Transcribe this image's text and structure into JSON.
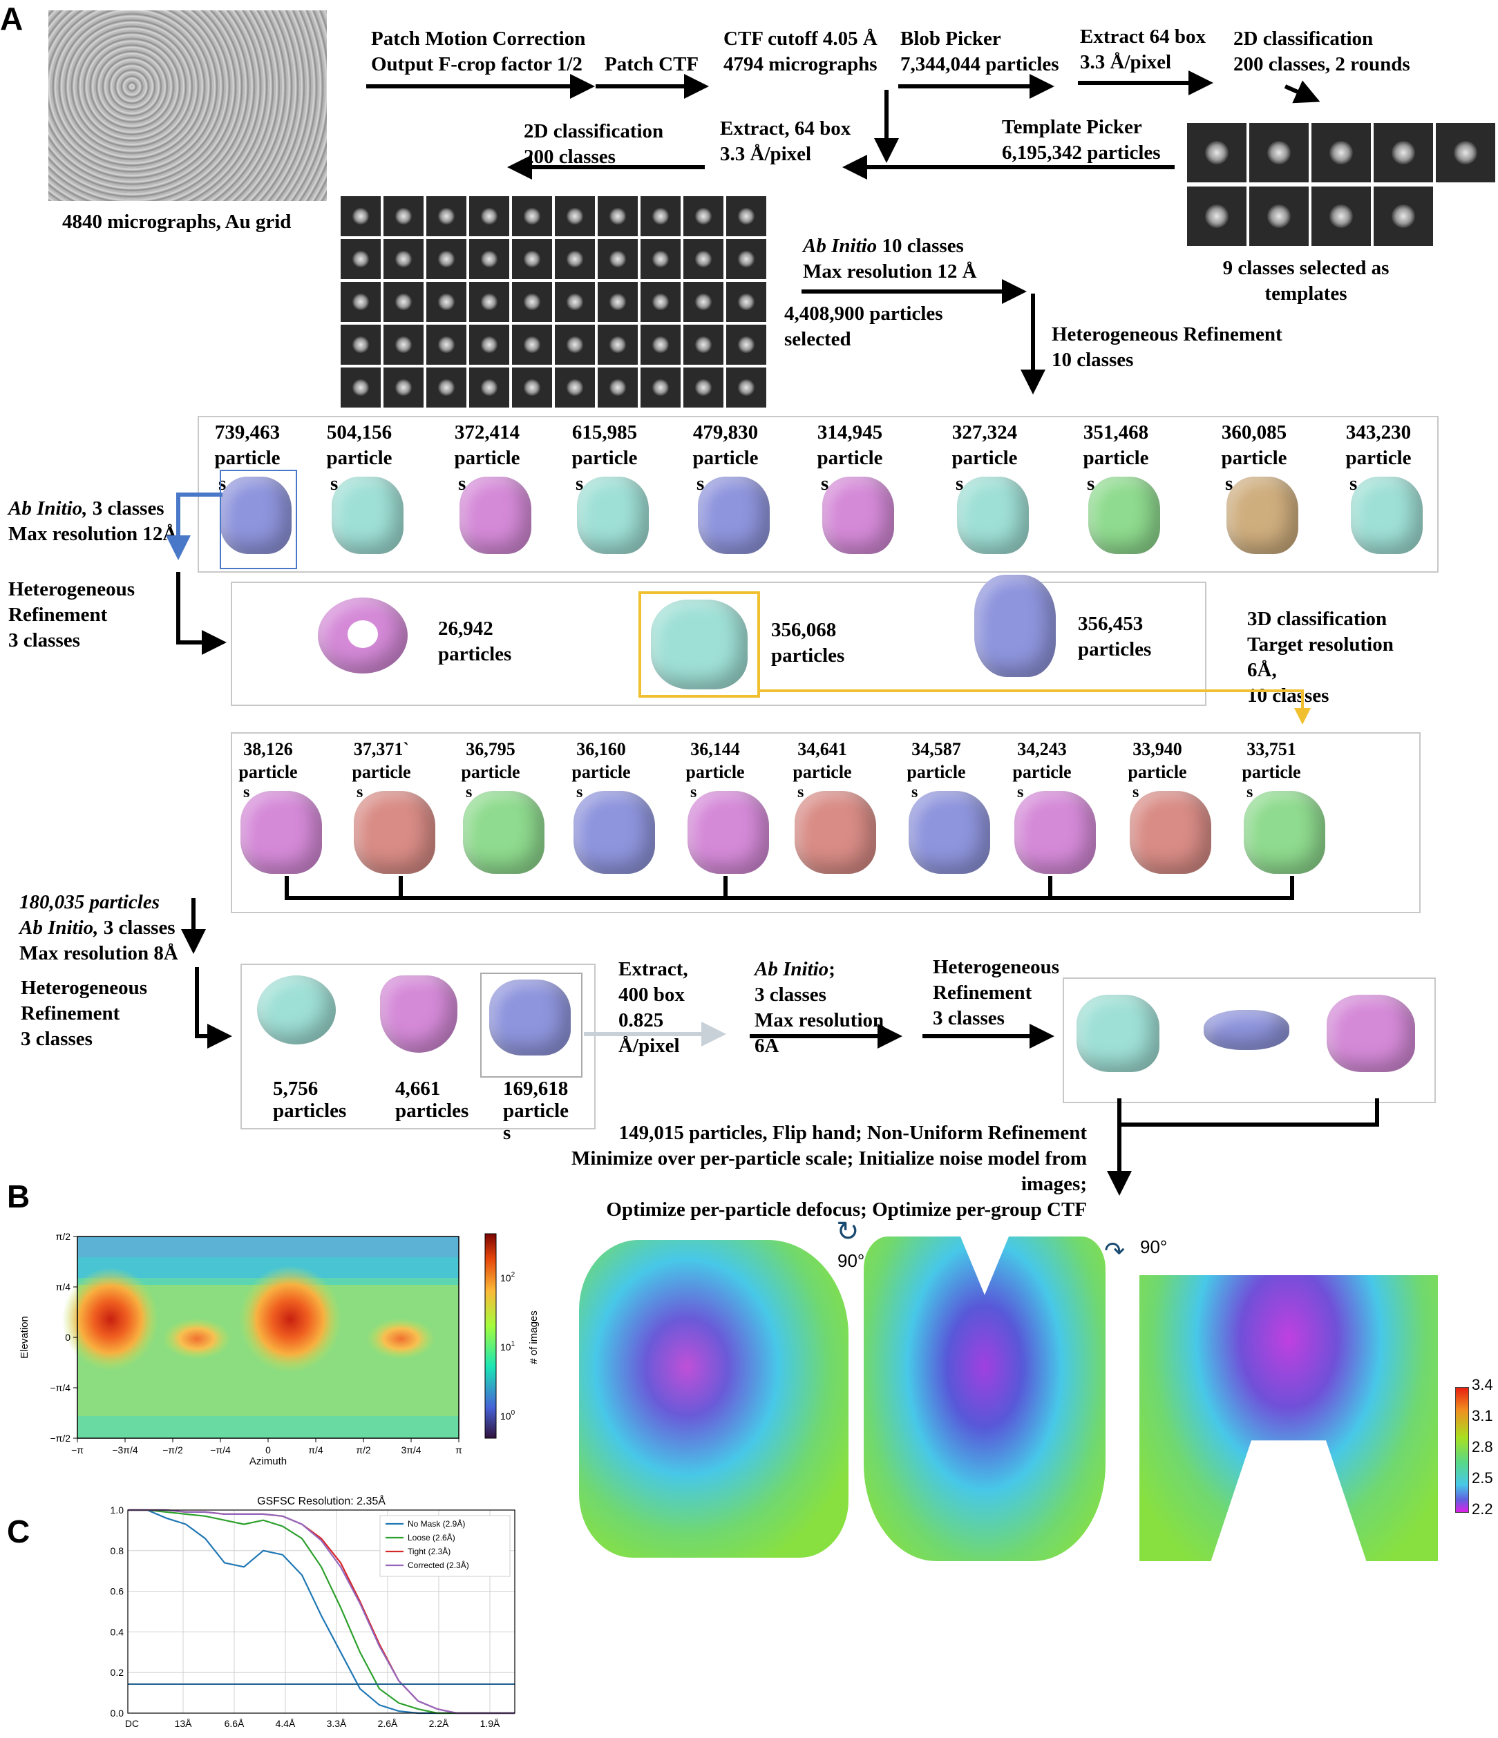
{
  "panels": {
    "a": "A",
    "b": "B",
    "c": "C"
  },
  "pipeline": {
    "micrograph_caption": "4840 micrographs, Au grid",
    "step1": [
      "Patch Motion Correction",
      "Output F-crop factor 1/2"
    ],
    "step2": "Patch CTF",
    "step3": [
      "CTF cutoff 4.05 Å",
      "4794 micrographs"
    ],
    "step4": [
      "Blob Picker",
      "7,344,044 particles"
    ],
    "step5": [
      "Extract 64 box",
      "3.3 Å/pixel"
    ],
    "step6": [
      "2D classification",
      "200 classes, 2 rounds"
    ],
    "template_picker": [
      "Template Picker",
      "6,195,342 particles"
    ],
    "extract2": [
      "Extract, 64 box",
      "3.3 Å/pixel"
    ],
    "class2d_2": [
      "2D classification",
      "200 classes"
    ],
    "templates_caption": [
      "9 classes selected as",
      "templates"
    ],
    "abinitio1": [
      "Ab Initio",
      " 10 classes",
      "Max resolution 12 Å"
    ],
    "selected": [
      "4,408,900 particles",
      "selected"
    ],
    "hetero1": [
      "Heterogeneous Refinement",
      "10 classes"
    ],
    "particle_word": "particle",
    "s_word": "s",
    "row1_counts": [
      "739,463",
      "504,156",
      "372,414",
      "615,985",
      "479,830",
      "314,945",
      "327,324",
      "351,468",
      "360,085",
      "343,230"
    ],
    "abinitio2": [
      "Ab Initio,",
      " 3 classes",
      "Max resolution 12Å"
    ],
    "hetero2": [
      "Heterogeneous",
      "Refinement",
      "3 classes"
    ],
    "row2": [
      {
        "count": "26,942",
        "label": "particles"
      },
      {
        "count": "356,068",
        "label": "particles"
      },
      {
        "count": "356,453",
        "label": "particles"
      }
    ],
    "class3d": [
      "3D classification",
      "Target resolution",
      "6Å,",
      "10 classes"
    ],
    "row3_counts": [
      "38,126",
      "37,371`",
      "36,795",
      "36,160",
      "36,144",
      "34,641",
      "34,587",
      "34,243",
      "33,940",
      "33,751"
    ],
    "abinitio3": [
      "180,035 particles",
      "Ab Initio,",
      " 3 classes",
      "Max resolution 8Å"
    ],
    "hetero3": [
      "Heterogeneous",
      "Refinement",
      "3 classes"
    ],
    "row4": [
      {
        "count": "5,756",
        "label": "particles"
      },
      {
        "count": "4,661",
        "label": "particles"
      },
      {
        "count": "169,618",
        "label": "particle"
      }
    ],
    "extract3": [
      "Extract,",
      "400 box",
      "0.825",
      "Å/pixel"
    ],
    "abinitio4": [
      "Ab Initio",
      ";",
      "3 classes",
      "Max resolution",
      "6A"
    ],
    "hetero4": [
      "Heterogeneous",
      "Refinement",
      "3 classes"
    ],
    "final": [
      "149,015 particles, Flip hand; Non-Uniform Refinement",
      "Minimize over per-particle scale; Initialize noise model from",
      "images;",
      "Optimize per-particle defocus; Optimize per-group CTF"
    ]
  },
  "colors": {
    "cyan": "#9fe0d6",
    "purple": "#8f95dd",
    "pink": "#d58ad8",
    "salmon": "#d98c86",
    "green": "#8fdb8f",
    "tan": "#cfae7e",
    "yellow": "#f0c030",
    "blue": "#4a78c8",
    "gray_arrow": "#c8d0d8"
  },
  "panel_b": {
    "x_ticks": [
      "−π",
      "−3π/4",
      "−π/2",
      "−π/4",
      "0",
      "π/4",
      "π/2",
      "3π/4",
      "π"
    ],
    "y_ticks": [
      "π/2",
      "π/4",
      "0",
      "−π/4",
      "−π/2"
    ],
    "xlabel": "Azimuth",
    "ylabel": "Elevation",
    "colorbar_label": "# of images",
    "colorbar_ticks": [
      "10",
      "10",
      "10"
    ],
    "colorbar_exps": [
      "2",
      "1",
      "0"
    ]
  },
  "resmap": {
    "rotation_labels": [
      "90°",
      "90°"
    ],
    "scale_ticks": [
      "3.4",
      "3.1",
      "2.8",
      "2.5",
      "2.2"
    ]
  },
  "chart_data": {
    "type": "line",
    "title": "GSFSC Resolution: 2.35Å",
    "x_tick_labels": [
      "DC",
      "13Å",
      "6.6Å",
      "4.4Å",
      "3.3Å",
      "2.6Å",
      "2.2Å",
      "1.9Å"
    ],
    "y_tick_labels": [
      "0.0",
      "0.2",
      "0.4",
      "0.6",
      "0.8",
      "1.0"
    ],
    "ylim": [
      0,
      1
    ],
    "x": [
      0,
      0.05,
      0.1,
      0.15,
      0.2,
      0.25,
      0.3,
      0.35,
      0.4,
      0.45,
      0.5,
      0.55,
      0.6,
      0.65,
      0.7,
      0.75,
      0.8,
      0.85,
      0.9,
      0.95,
      1.0
    ],
    "series": [
      {
        "name": "No Mask (2.9Å)",
        "color": "#1f77b4",
        "values": [
          1.0,
          1.0,
          0.96,
          0.93,
          0.86,
          0.74,
          0.72,
          0.8,
          0.78,
          0.68,
          0.48,
          0.3,
          0.12,
          0.04,
          0.01,
          0.0,
          0.0,
          0.0,
          0.0,
          0.0,
          0.0
        ]
      },
      {
        "name": "Loose (2.6Å)",
        "color": "#2ca02c",
        "values": [
          1.0,
          1.0,
          0.99,
          0.98,
          0.97,
          0.95,
          0.93,
          0.95,
          0.92,
          0.86,
          0.72,
          0.52,
          0.3,
          0.12,
          0.05,
          0.02,
          0.0,
          0.0,
          0.0,
          0.0,
          0.0
        ]
      },
      {
        "name": "Tight (2.3Å)",
        "color": "#d62728",
        "values": [
          1.0,
          1.0,
          1.0,
          0.99,
          0.99,
          0.98,
          0.98,
          0.98,
          0.97,
          0.93,
          0.86,
          0.74,
          0.55,
          0.34,
          0.16,
          0.06,
          0.02,
          0.0,
          0.0,
          0.0,
          0.0
        ]
      },
      {
        "name": "Corrected (2.3Å)",
        "color": "#9467bd",
        "values": [
          1.0,
          1.0,
          1.0,
          0.99,
          0.99,
          0.98,
          0.98,
          0.98,
          0.97,
          0.93,
          0.85,
          0.72,
          0.54,
          0.33,
          0.16,
          0.06,
          0.02,
          0.0,
          0.0,
          0.0,
          0.0
        ]
      }
    ],
    "threshold": 0.143,
    "grid": true,
    "legend": "top-right"
  }
}
